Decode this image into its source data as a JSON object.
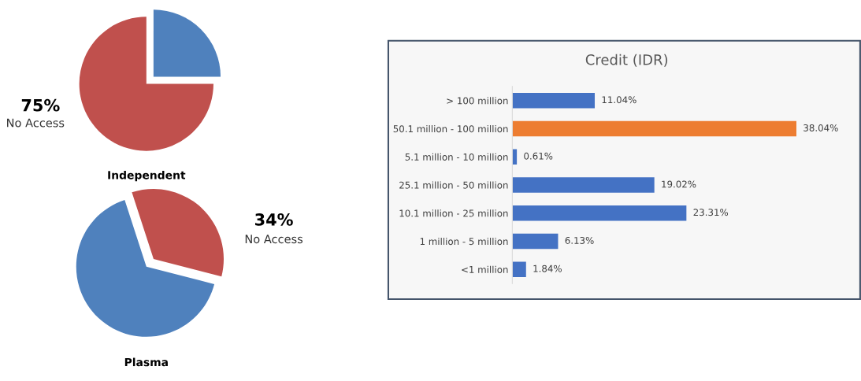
{
  "chart_data": [
    {
      "type": "pie",
      "title": "Independent",
      "categories": [
        null,
        "No Access"
      ],
      "values": [
        25,
        75
      ],
      "colors": [
        "#4f81bd",
        "#c0504d"
      ],
      "value_labels": [
        null,
        "75%"
      ]
    },
    {
      "type": "pie",
      "title": "Plasma",
      "categories": [
        "No Access",
        null
      ],
      "values": [
        34,
        66
      ],
      "colors": [
        "#c0504d",
        "#4f81bd"
      ],
      "value_labels": [
        "34%",
        null
      ]
    },
    {
      "type": "bar",
      "orientation": "horizontal",
      "title": "Credit (IDR)",
      "categories": [
        "> 100 million",
        "50.1 million - 100 million",
        "5.1 million - 10 million",
        "25.1 million - 50 million",
        "10.1 million - 25 million",
        "1 million - 5 million",
        "<1 million"
      ],
      "values": [
        11.04,
        38.04,
        0.61,
        19.02,
        23.31,
        6.13,
        1.84
      ],
      "colors": [
        "#4472c4",
        "#ed7d31",
        "#4472c4",
        "#4472c4",
        "#4472c4",
        "#4472c4",
        "#4472c4"
      ],
      "value_labels": [
        "11.04%",
        "38.04%",
        "0.61%",
        "19.02%",
        "23.31%",
        "6.13%",
        "1.84%"
      ]
    }
  ]
}
